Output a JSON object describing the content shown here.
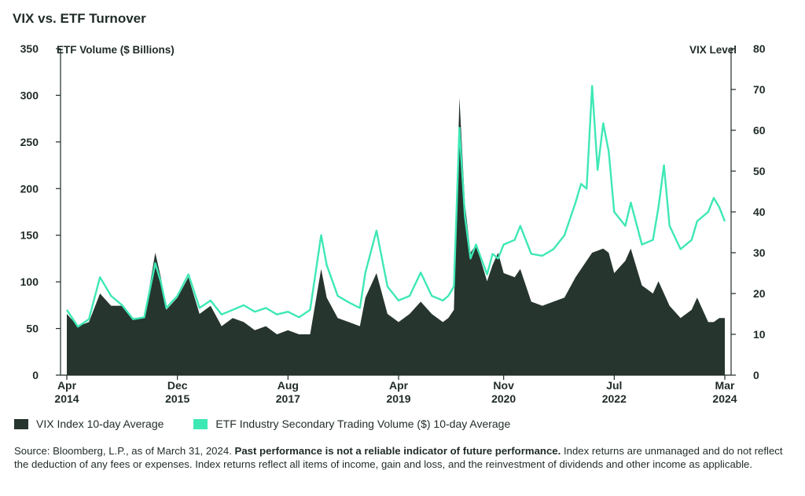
{
  "chart_data": {
    "type": "area",
    "title": "VIX vs. ETF Turnover",
    "left_axis": {
      "label": "ETF Volume ($ Billions)",
      "range": [
        0,
        350
      ],
      "ticks": [
        0,
        50,
        100,
        150,
        200,
        250,
        300,
        350
      ]
    },
    "right_axis": {
      "label": "VIX Level",
      "range": [
        0,
        80
      ],
      "ticks": [
        0,
        10,
        20,
        30,
        40,
        50,
        60,
        70,
        80
      ]
    },
    "x_axis": {
      "range": [
        "2014-04",
        "2024-03"
      ],
      "ticks": [
        {
          "month": "Apr",
          "year": "2014",
          "date": "2014-04"
        },
        {
          "month": "Dec",
          "year": "2015",
          "date": "2015-12"
        },
        {
          "month": "Aug",
          "year": "2017",
          "date": "2017-08"
        },
        {
          "month": "Apr",
          "year": "2019",
          "date": "2019-04"
        },
        {
          "month": "Nov",
          "year": "2020",
          "date": "2020-11"
        },
        {
          "month": "Jul",
          "year": "2022",
          "date": "2022-07"
        },
        {
          "month": "Mar",
          "year": "2024",
          "date": "2024-03"
        }
      ]
    },
    "series": [
      {
        "name": "VIX Index 10-day Average",
        "axis": "right",
        "style": "area",
        "color": "#26352e",
        "points": [
          [
            "2014-04",
            15
          ],
          [
            "2014-06",
            12
          ],
          [
            "2014-08",
            13
          ],
          [
            "2014-10",
            20
          ],
          [
            "2014-12",
            17
          ],
          [
            "2015-02",
            17
          ],
          [
            "2015-04",
            14
          ],
          [
            "2015-06",
            14
          ],
          [
            "2015-08",
            30
          ],
          [
            "2015-09",
            24
          ],
          [
            "2015-10",
            16
          ],
          [
            "2015-12",
            19
          ],
          [
            "2016-02",
            24
          ],
          [
            "2016-04",
            15
          ],
          [
            "2016-06",
            17
          ],
          [
            "2016-08",
            12
          ],
          [
            "2016-10",
            14
          ],
          [
            "2016-12",
            13
          ],
          [
            "2017-02",
            11
          ],
          [
            "2017-04",
            12
          ],
          [
            "2017-06",
            10
          ],
          [
            "2017-08",
            11
          ],
          [
            "2017-10",
            10
          ],
          [
            "2017-12",
            10
          ],
          [
            "2018-02",
            26
          ],
          [
            "2018-03",
            19
          ],
          [
            "2018-05",
            14
          ],
          [
            "2018-07",
            13
          ],
          [
            "2018-09",
            12
          ],
          [
            "2018-10",
            19
          ],
          [
            "2018-12",
            25
          ],
          [
            "2019-02",
            15
          ],
          [
            "2019-04",
            13
          ],
          [
            "2019-06",
            15
          ],
          [
            "2019-08",
            18
          ],
          [
            "2019-10",
            15
          ],
          [
            "2019-12",
            13
          ],
          [
            "2020-01",
            14
          ],
          [
            "2020-02",
            16
          ],
          [
            "2020-03",
            68
          ],
          [
            "2020-04",
            42
          ],
          [
            "2020-05",
            30
          ],
          [
            "2020-06",
            32
          ],
          [
            "2020-08",
            23
          ],
          [
            "2020-09",
            27
          ],
          [
            "2020-10",
            30
          ],
          [
            "2020-11",
            25
          ],
          [
            "2021-01",
            24
          ],
          [
            "2021-02",
            26
          ],
          [
            "2021-04",
            18
          ],
          [
            "2021-06",
            17
          ],
          [
            "2021-08",
            18
          ],
          [
            "2021-10",
            19
          ],
          [
            "2021-12",
            24
          ],
          [
            "2022-02",
            28
          ],
          [
            "2022-03",
            30
          ],
          [
            "2022-05",
            31
          ],
          [
            "2022-06",
            30
          ],
          [
            "2022-07",
            25
          ],
          [
            "2022-09",
            28
          ],
          [
            "2022-10",
            31
          ],
          [
            "2022-12",
            22
          ],
          [
            "2023-02",
            20
          ],
          [
            "2023-03",
            23
          ],
          [
            "2023-05",
            17
          ],
          [
            "2023-07",
            14
          ],
          [
            "2023-09",
            16
          ],
          [
            "2023-10",
            19
          ],
          [
            "2023-12",
            13
          ],
          [
            "2024-01",
            13
          ],
          [
            "2024-02",
            14
          ],
          [
            "2024-03",
            14
          ]
        ]
      },
      {
        "name": "ETF Industry Secondary Trading Volume ($) 10-day Average",
        "axis": "left",
        "style": "line",
        "color": "#3ee8b5",
        "points": [
          [
            "2014-04",
            70
          ],
          [
            "2014-06",
            52
          ],
          [
            "2014-08",
            60
          ],
          [
            "2014-10",
            105
          ],
          [
            "2014-12",
            85
          ],
          [
            "2015-02",
            75
          ],
          [
            "2015-04",
            60
          ],
          [
            "2015-06",
            62
          ],
          [
            "2015-08",
            120
          ],
          [
            "2015-09",
            100
          ],
          [
            "2015-10",
            72
          ],
          [
            "2015-12",
            85
          ],
          [
            "2016-02",
            108
          ],
          [
            "2016-04",
            72
          ],
          [
            "2016-06",
            80
          ],
          [
            "2016-08",
            65
          ],
          [
            "2016-10",
            70
          ],
          [
            "2016-12",
            75
          ],
          [
            "2017-02",
            68
          ],
          [
            "2017-04",
            72
          ],
          [
            "2017-06",
            65
          ],
          [
            "2017-08",
            68
          ],
          [
            "2017-10",
            62
          ],
          [
            "2017-12",
            70
          ],
          [
            "2018-02",
            150
          ],
          [
            "2018-03",
            118
          ],
          [
            "2018-05",
            85
          ],
          [
            "2018-07",
            78
          ],
          [
            "2018-09",
            72
          ],
          [
            "2018-10",
            110
          ],
          [
            "2018-12",
            155
          ],
          [
            "2019-02",
            95
          ],
          [
            "2019-04",
            80
          ],
          [
            "2019-06",
            85
          ],
          [
            "2019-08",
            110
          ],
          [
            "2019-10",
            85
          ],
          [
            "2019-12",
            80
          ],
          [
            "2020-01",
            85
          ],
          [
            "2020-02",
            95
          ],
          [
            "2020-03",
            265
          ],
          [
            "2020-04",
            170
          ],
          [
            "2020-05",
            125
          ],
          [
            "2020-06",
            140
          ],
          [
            "2020-08",
            108
          ],
          [
            "2020-09",
            130
          ],
          [
            "2020-10",
            125
          ],
          [
            "2020-11",
            140
          ],
          [
            "2021-01",
            145
          ],
          [
            "2021-02",
            160
          ],
          [
            "2021-04",
            130
          ],
          [
            "2021-06",
            128
          ],
          [
            "2021-08",
            135
          ],
          [
            "2021-10",
            150
          ],
          [
            "2021-12",
            185
          ],
          [
            "2022-01",
            205
          ],
          [
            "2022-02",
            200
          ],
          [
            "2022-03",
            310
          ],
          [
            "2022-04",
            220
          ],
          [
            "2022-05",
            270
          ],
          [
            "2022-06",
            240
          ],
          [
            "2022-07",
            175
          ],
          [
            "2022-09",
            160
          ],
          [
            "2022-10",
            185
          ],
          [
            "2022-12",
            140
          ],
          [
            "2023-02",
            145
          ],
          [
            "2023-03",
            180
          ],
          [
            "2023-04",
            225
          ],
          [
            "2023-05",
            160
          ],
          [
            "2023-07",
            135
          ],
          [
            "2023-09",
            145
          ],
          [
            "2023-10",
            165
          ],
          [
            "2023-12",
            175
          ],
          [
            "2024-01",
            190
          ],
          [
            "2024-02",
            180
          ],
          [
            "2024-03",
            165
          ]
        ]
      }
    ]
  },
  "legend": {
    "items": [
      {
        "label": "VIX Index 10-day Average",
        "color": "#26352e"
      },
      {
        "label": "ETF Industry Secondary Trading Volume ($) 10-day Average",
        "color": "#3ee8b5"
      }
    ]
  },
  "source": {
    "prefix": "Source: Bloomberg, L.P., as of March 31, 2024. ",
    "bold": "Past performance is not a reliable indicator of future performance.",
    "suffix": " Index returns are unmanaged and do not reflect the deduction of any fees or expenses. Index returns reflect all items of income, gain and loss, and the reinvestment of dividends and other income as applicable."
  }
}
